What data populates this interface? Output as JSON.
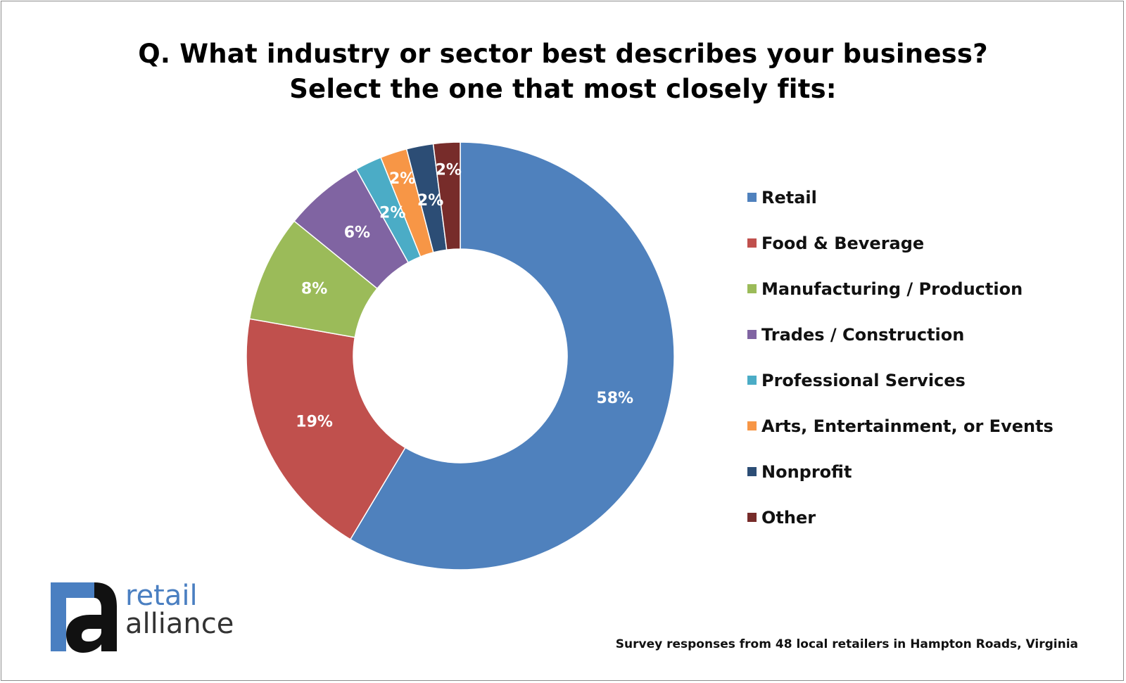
{
  "chart_data": {
    "type": "pie",
    "title": "Q. What industry or sector best describes your business?",
    "subtitle": "Select the one that most closely fits:",
    "donut": true,
    "legend_position": "right",
    "series": [
      {
        "name": "Retail",
        "value": 58,
        "label": "58%",
        "color": "#4f81bd"
      },
      {
        "name": "Food & Beverage",
        "value": 19,
        "label": "19%",
        "color": "#c0504d"
      },
      {
        "name": "Manufacturing / Production",
        "value": 8,
        "label": "8%",
        "color": "#9bbb59"
      },
      {
        "name": "Trades / Construction",
        "value": 6,
        "label": "6%",
        "color": "#8064a2"
      },
      {
        "name": "Professional Services",
        "value": 2,
        "label": "2%",
        "color": "#4bacc6"
      },
      {
        "name": "Arts, Entertainment, or Events",
        "value": 2,
        "label": "2%",
        "color": "#f79646"
      },
      {
        "name": "Nonprofit",
        "value": 2,
        "label": "2%",
        "color": "#2c4d75"
      },
      {
        "name": "Other",
        "value": 2,
        "label": "2%",
        "color": "#772c2a"
      }
    ],
    "footnote": "Survey responses from 48 local retailers in Hampton Roads, Virginia"
  },
  "logo": {
    "line1": "retail",
    "line2": "alliance",
    "mark_color_blue": "#4a7fc1",
    "mark_color_dark": "#111111"
  }
}
